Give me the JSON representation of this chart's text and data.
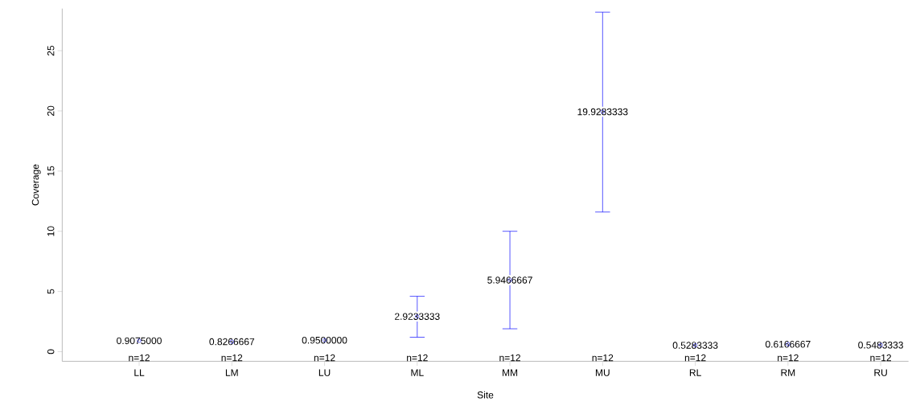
{
  "chart_data": {
    "type": "scatter",
    "xlabel": "Site",
    "ylabel": "Coverage",
    "marker": "circle",
    "categories": [
      "LL",
      "LM",
      "LU",
      "ML",
      "MM",
      "MU",
      "RL",
      "RM",
      "RU"
    ],
    "series": [
      {
        "color": "#0000ff",
        "values": [
          0.9075,
          0.8266667,
          0.95,
          2.9233333,
          5.9466667,
          19.9283333,
          0.5283333,
          0.6166667,
          0.5483333
        ],
        "errors": [
          null,
          null,
          null,
          [
            1.2,
            4.6
          ],
          [
            1.9,
            10.0
          ],
          [
            11.6,
            28.2
          ],
          null,
          null,
          null
        ],
        "value_labels": [
          "0.9075000",
          "0.8266667",
          "0.9500000",
          "2.9233333",
          "5.9466667",
          "19.9283333",
          "0.5283333",
          "0.6166667",
          "0.5483333"
        ]
      }
    ],
    "ylim": [
      -0.8,
      28.5
    ],
    "yticks": [
      0,
      5,
      10,
      15,
      20,
      25
    ],
    "annotations": [
      "n=12",
      "n=12",
      "n=12",
      "n=12",
      "n=12",
      "n=12",
      "n=12",
      "n=12",
      "n=12"
    ]
  }
}
